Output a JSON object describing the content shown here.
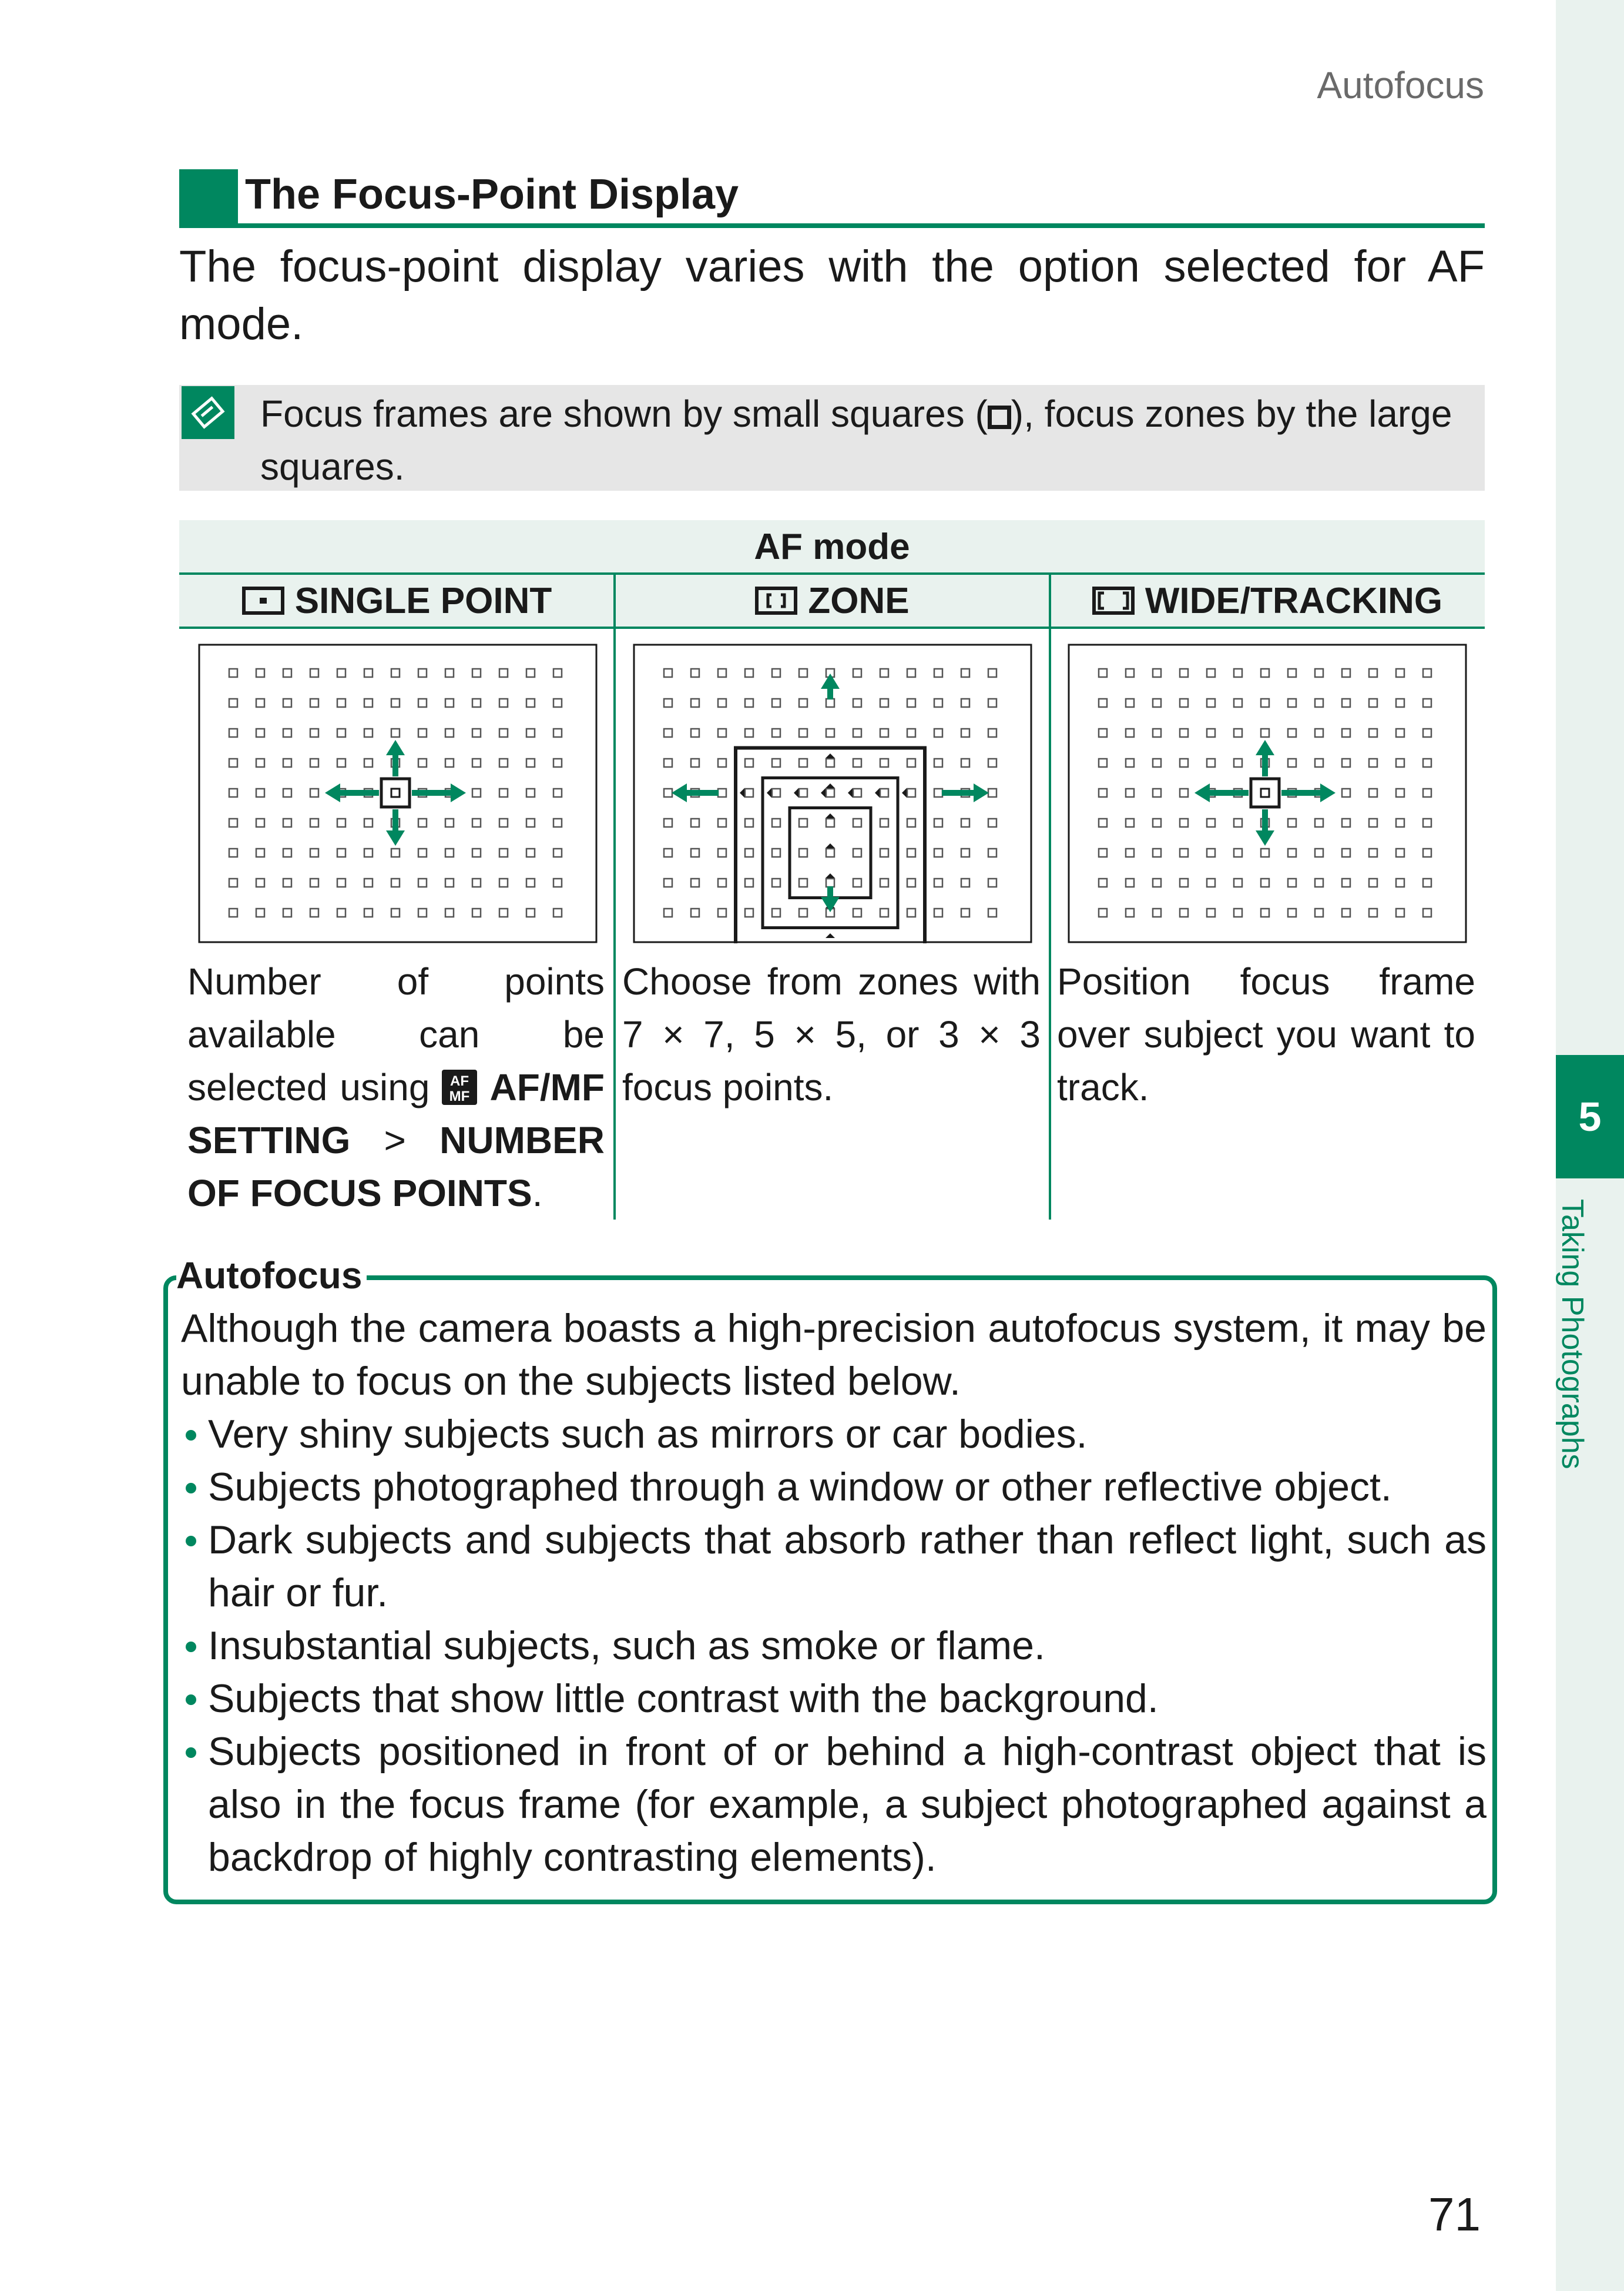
{
  "header": {
    "running_title": "Autofocus"
  },
  "chapter": {
    "number": "5",
    "title": "Taking Photographs"
  },
  "section": {
    "title": "The Focus-Point Display"
  },
  "intro": "The focus-point display varies with the option selected for AF mode.",
  "note": {
    "icon": "note-icon",
    "text_before": "Focus frames are shown by small squares (",
    "text_after": "), focus zones by the large squares."
  },
  "table": {
    "header": "AF mode",
    "columns": [
      {
        "icon": "single-point-icon",
        "label": "SINGLE POINT"
      },
      {
        "icon": "zone-icon",
        "label": "ZONE"
      },
      {
        "icon": "wide-tracking-icon",
        "label": "WIDE/TRACKING"
      }
    ],
    "desc_single": {
      "text1": "Number of points available can be selected using",
      "icon": "af-mf-setting-icon",
      "menu": "AF/MF SETTING",
      "sep": " > ",
      "item": "NUMBER OF FOCUS POINTS",
      "end": "."
    },
    "desc_zone": "Choose from zones with 7 × 7, 5 × 5, or 3 × 3 focus points.",
    "desc_wide": "Position focus frame over subject you want to track."
  },
  "callout": {
    "label": "Autofocus",
    "intro": "Although the camera boasts a high-precision autofocus system, it may be unable to focus on the subjects listed below.",
    "items": [
      "Very shiny subjects such as mirrors or car bodies.",
      "Subjects photographed through a window or other reflective object.",
      "Dark subjects and subjects that absorb rather than reflect light, such as hair or fur.",
      "Insubstantial subjects, such as smoke or flame.",
      "Subjects that show little contrast with the background.",
      "Subjects positioned in front of or behind a high-contrast object that is also in the focus frame (for example, a subject photographed against a backdrop of highly contrasting elements)."
    ]
  },
  "footer": {
    "page_number": "71"
  },
  "colors": {
    "accent": "#00875f",
    "accent_light": "#e9f2ee",
    "note_bg": "#e6e6e6"
  }
}
